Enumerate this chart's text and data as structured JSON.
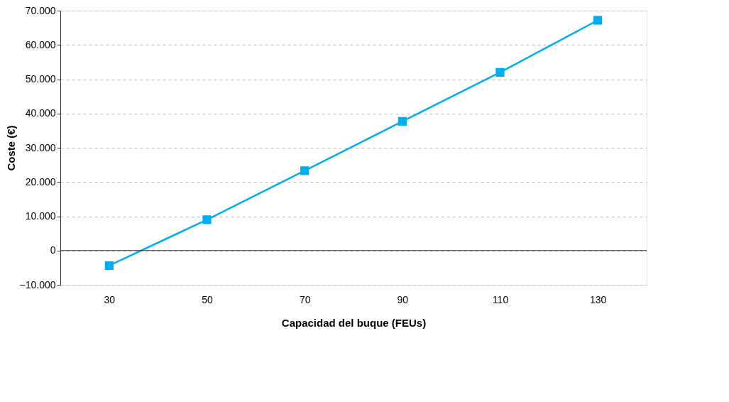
{
  "chart_data": {
    "type": "line",
    "xlabel": "Capacidad del buque (FEUs)",
    "ylabel": "Coste (€)",
    "categories": [
      "30",
      "50",
      "70",
      "90",
      "110",
      "130"
    ],
    "series": [
      {
        "color": "#00aeef",
        "values": [
          -4400,
          9000,
          23300,
          37700,
          52000,
          67200
        ]
      }
    ],
    "ylim": [
      -10000,
      70000
    ],
    "yticks": [
      {
        "value": -10000,
        "label": "−10.000"
      },
      {
        "value": 0,
        "label": "0"
      },
      {
        "value": 10000,
        "label": "10.000"
      },
      {
        "value": 20000,
        "label": "20.000"
      },
      {
        "value": 30000,
        "label": "30.000"
      },
      {
        "value": 40000,
        "label": "40.000"
      },
      {
        "value": 50000,
        "label": "50.000"
      },
      {
        "value": 60000,
        "label": "60.000"
      },
      {
        "value": 70000,
        "label": "70.000"
      }
    ],
    "grid": "y",
    "marker": "square",
    "line_style": "solid"
  }
}
